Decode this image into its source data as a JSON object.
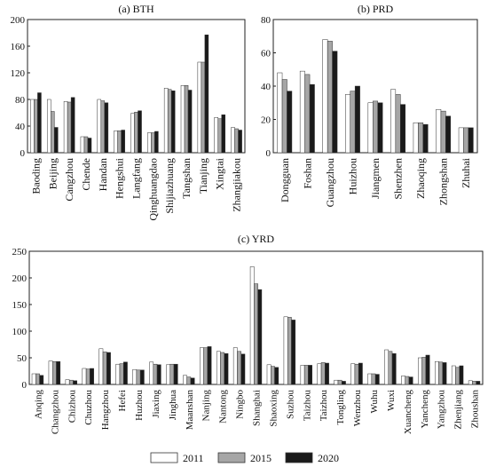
{
  "chart_data": [
    {
      "type": "bar",
      "title": "(a) BTH",
      "ylim": [
        0,
        200
      ],
      "yticks": [
        0,
        40,
        80,
        120,
        160,
        200
      ],
      "categories": [
        "Baoding",
        "Beijing",
        "Cangzhou",
        "Chende",
        "Handan",
        "Hengshui",
        "Langfang",
        "Qinghuangdao",
        "Shijiazhuang",
        "Tangshan",
        "Tianjing",
        "Xingtai",
        "Zhangjiakou"
      ],
      "series": [
        {
          "name": "2011",
          "values": [
            80,
            80,
            77,
            24,
            80,
            33,
            59,
            30,
            97,
            101,
            136,
            53,
            38
          ]
        },
        {
          "name": "2015",
          "values": [
            80,
            62,
            76,
            24,
            78,
            33,
            61,
            30,
            95,
            101,
            136,
            51,
            36
          ]
        },
        {
          "name": "2020",
          "values": [
            90,
            38,
            83,
            22,
            75,
            34,
            63,
            32,
            93,
            94,
            177,
            57,
            34
          ]
        }
      ],
      "grid": false
    },
    {
      "type": "bar",
      "title": "(b) PRD",
      "ylim": [
        0,
        80
      ],
      "yticks": [
        0,
        20,
        40,
        60,
        80
      ],
      "categories": [
        "Dongguan",
        "Foshan",
        "Guangzhou",
        "Huizhou",
        "Jiangmen",
        "Shenzhen",
        "Zhaoqing",
        "Zhongshan",
        "Zhuhai"
      ],
      "series": [
        {
          "name": "2011",
          "values": [
            48,
            49,
            68,
            35,
            30,
            38,
            18,
            26,
            15
          ]
        },
        {
          "name": "2015",
          "values": [
            44,
            47,
            67,
            37,
            31,
            35,
            18,
            25,
            15
          ]
        },
        {
          "name": "2020",
          "values": [
            37,
            41,
            61,
            40,
            30,
            29,
            17,
            22,
            15
          ]
        }
      ],
      "grid": false
    },
    {
      "type": "bar",
      "title": "(c) YRD",
      "ylim": [
        0,
        250
      ],
      "yticks": [
        0,
        50,
        100,
        150,
        200,
        250
      ],
      "categories": [
        "Anqing",
        "Changzhou",
        "Chizhou",
        "Chuzhou",
        "Hangzhou",
        "Hefei",
        "Huzhou",
        "Jiaxing",
        "Jinghua",
        "Maanshan",
        "Nanjing",
        "Nantong",
        "Ningbo",
        "Shanghai",
        "Shaoxing",
        "Suzhou",
        "Taizhou",
        "Taizhou",
        "Tongling",
        "Wenzhou",
        "Wuhu",
        "Wuxi",
        "Xuancheng",
        "Yancheng",
        "Yangzhou",
        "Zhenjiang",
        "Zhoushan"
      ],
      "series": [
        {
          "name": "2011",
          "values": [
            20,
            44,
            9,
            30,
            67,
            38,
            28,
            42,
            37,
            17,
            69,
            62,
            69,
            221,
            37,
            127,
            36,
            39,
            8,
            39,
            20,
            65,
            16,
            50,
            43,
            35,
            7
          ]
        },
        {
          "name": "2015",
          "values": [
            20,
            43,
            8,
            29,
            61,
            39,
            27,
            38,
            38,
            14,
            69,
            60,
            62,
            189,
            34,
            126,
            36,
            41,
            8,
            38,
            20,
            62,
            15,
            51,
            42,
            32,
            6
          ]
        },
        {
          "name": "2020",
          "values": [
            17,
            43,
            7,
            30,
            60,
            42,
            27,
            37,
            38,
            12,
            71,
            58,
            57,
            178,
            32,
            121,
            36,
            40,
            6,
            40,
            19,
            58,
            14,
            55,
            41,
            35,
            6
          ]
        }
      ],
      "grid": false
    }
  ],
  "legend": {
    "placement": "bottom",
    "items": [
      {
        "label": "2011",
        "color": "#ffffff"
      },
      {
        "label": "2015",
        "color": "#a6a6a6"
      },
      {
        "label": "2020",
        "color": "#1a1a1a"
      }
    ]
  }
}
